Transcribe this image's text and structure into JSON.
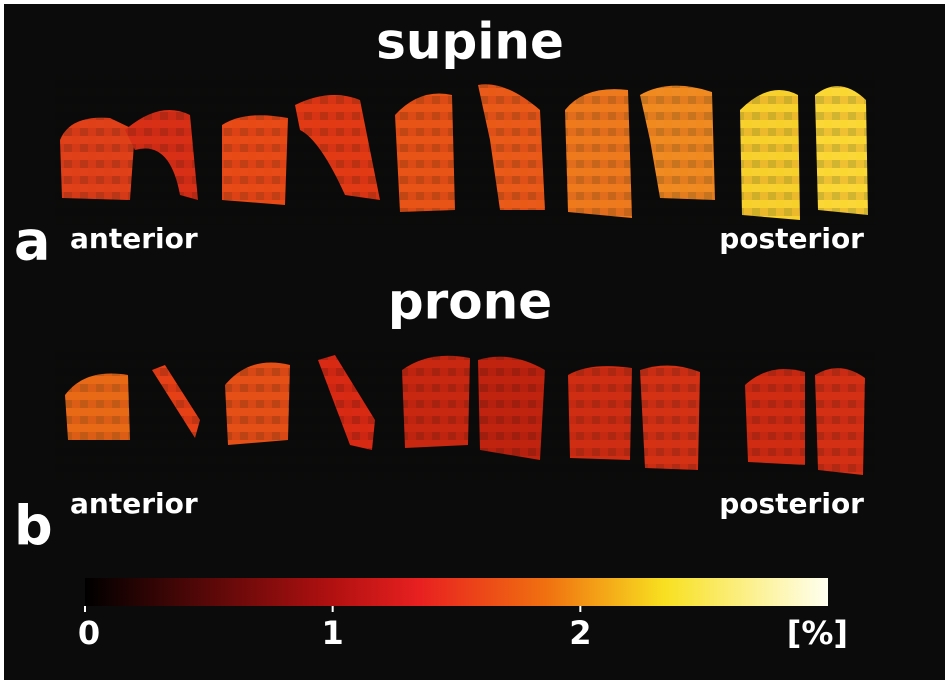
{
  "panels": [
    {
      "label": "a",
      "title": "supine",
      "left": "anterior",
      "right": "posterior"
    },
    {
      "label": "b",
      "title": "prone",
      "left": "anterior",
      "right": "posterior"
    }
  ],
  "colorbar": {
    "range": [
      0,
      3
    ],
    "ticks": [
      0,
      1,
      2
    ],
    "unit": "[%]"
  }
}
